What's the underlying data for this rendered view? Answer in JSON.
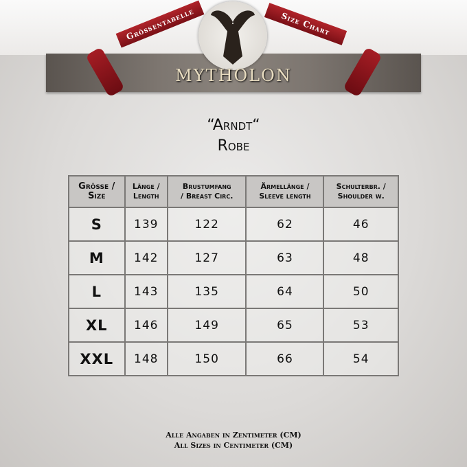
{
  "header": {
    "ribbon_left": "Grössentabelle",
    "ribbon_right": "Size Chart",
    "brand": "MYTHOLON"
  },
  "title": {
    "line1": "“Arndt“",
    "line2": "Robe"
  },
  "table": {
    "headers": [
      [
        "Grösse /",
        "Size"
      ],
      [
        "Länge /",
        "Length"
      ],
      [
        "Brustumfang",
        "/ Breast Circ."
      ],
      [
        "Ärmellänge /",
        "Sleeve length"
      ],
      [
        "Schulterbr. /",
        "Shoulder w."
      ]
    ],
    "rows": [
      [
        "S",
        "139",
        "122",
        "62",
        "46"
      ],
      [
        "M",
        "142",
        "127",
        "63",
        "48"
      ],
      [
        "L",
        "143",
        "135",
        "64",
        "50"
      ],
      [
        "XL",
        "146",
        "149",
        "65",
        "53"
      ],
      [
        "XXL",
        "148",
        "150",
        "66",
        "54"
      ]
    ]
  },
  "footer": {
    "line1": "Alle Angaben in Zentimeter (CM)",
    "line2": "All Sizes in Centimeter (CM)"
  }
}
